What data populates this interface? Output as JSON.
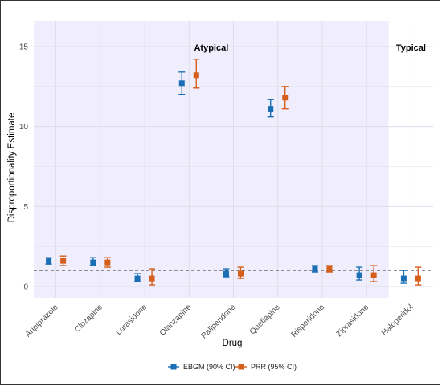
{
  "chart_data": {
    "type": "errorbar",
    "xlabel": "Drug",
    "ylabel": "Disproportionality Estimate",
    "ylim": [
      -0.7,
      16.6
    ],
    "yticks": [
      0,
      5,
      10,
      15
    ],
    "reference_line_y": 1,
    "grid": true,
    "legend_position": "bottom",
    "categories": [
      "Aripiprazole",
      "Clozapine",
      "Lurasidone",
      "Olanzapine",
      "Paliperidone",
      "Quetiapine",
      "Risperidone",
      "Ziprasidone",
      "Haloperidol"
    ],
    "groups": [
      {
        "label": "Atypical",
        "categories": [
          "Aripiprazole",
          "Clozapine",
          "Lurasidone",
          "Olanzapine",
          "Paliperidone",
          "Quetiapine",
          "Risperidone",
          "Ziprasidone"
        ],
        "color": "#f0eefc"
      },
      {
        "label": "Typical",
        "categories": [
          "Haloperidol"
        ],
        "color": "#ffffff"
      }
    ],
    "series": [
      {
        "name": "EBGM (90% CI)",
        "color": "#1a6fb4",
        "values": [
          1.6,
          1.5,
          0.5,
          12.7,
          0.8,
          11.1,
          1.1,
          0.7,
          0.5
        ],
        "lower": [
          1.4,
          1.3,
          0.3,
          12.0,
          0.6,
          10.6,
          0.9,
          0.4,
          0.2
        ],
        "upper": [
          1.8,
          1.8,
          0.8,
          13.4,
          1.1,
          11.7,
          1.3,
          1.2,
          1.0
        ]
      },
      {
        "name": "PRR (95% CI)",
        "color": "#d55e1a",
        "values": [
          1.6,
          1.5,
          0.5,
          13.2,
          0.8,
          11.8,
          1.1,
          0.7,
          0.5
        ],
        "lower": [
          1.3,
          1.2,
          0.1,
          12.4,
          0.5,
          11.1,
          0.9,
          0.3,
          0.1
        ],
        "upper": [
          1.9,
          1.8,
          1.1,
          14.2,
          1.2,
          12.5,
          1.3,
          1.3,
          1.2
        ]
      }
    ]
  }
}
